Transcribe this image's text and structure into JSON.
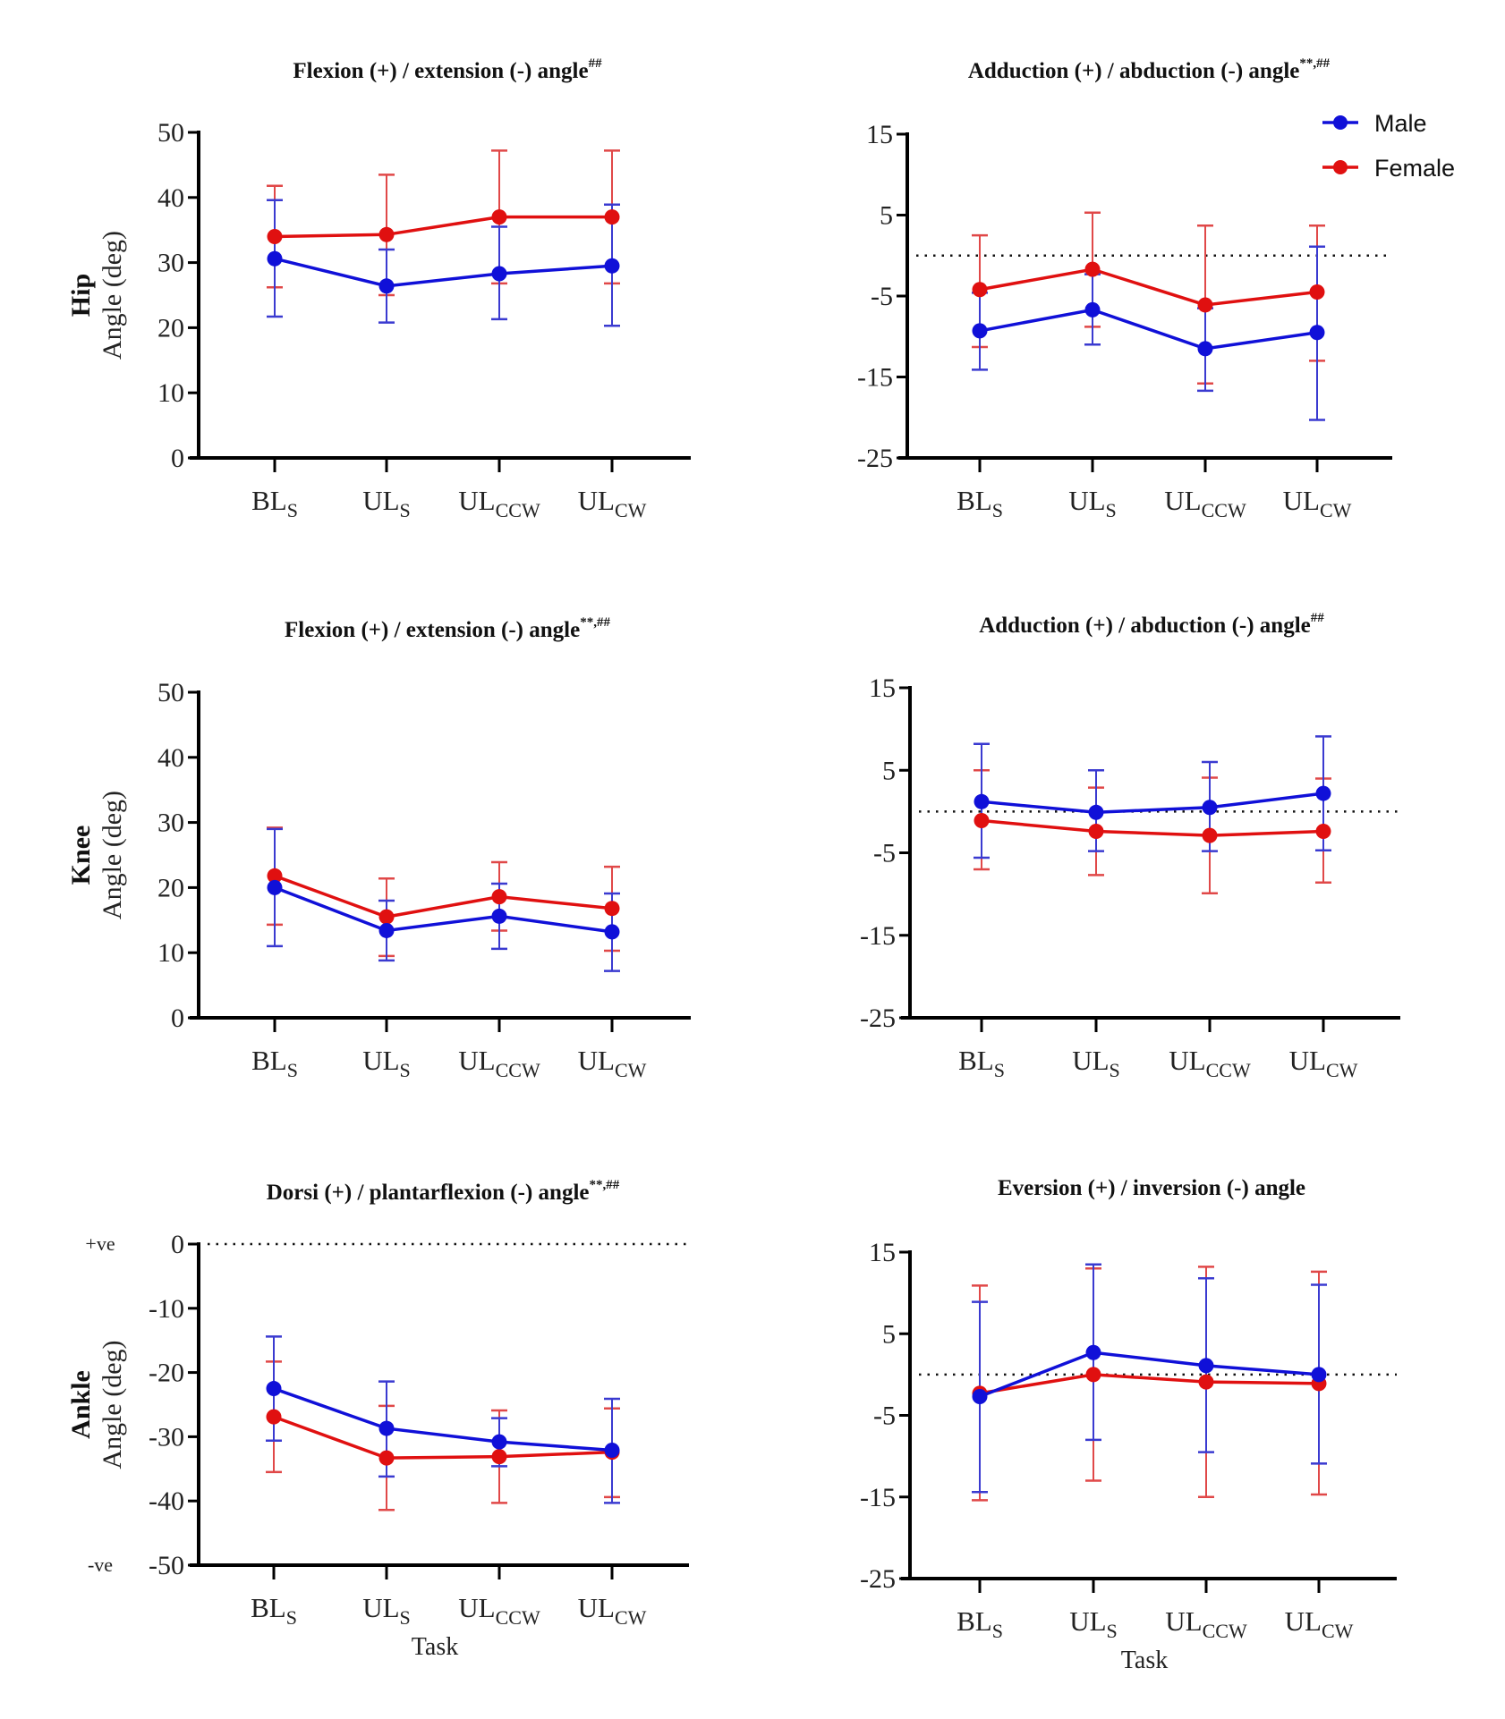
{
  "figure": {
    "legend": [
      {
        "name": "Male",
        "color": "#1010d8"
      },
      {
        "name": "Female",
        "color": "#e01010"
      }
    ],
    "categories": [
      {
        "main": "BL",
        "sub": "S"
      },
      {
        "main": "UL",
        "sub": "S"
      },
      {
        "main": "UL",
        "sub": "CCW"
      },
      {
        "main": "UL",
        "sub": "CW"
      }
    ],
    "xlabel": "Task",
    "ylabel": "Angle (deg)",
    "row_labels": [
      "Hip",
      "Knee",
      "Ankle"
    ],
    "sign_labels": {
      "positive": "+ve",
      "negative": "-ve"
    }
  },
  "chart_data": [
    {
      "id": "hip-flexion",
      "type": "line",
      "row": "Hip",
      "title": "Flexion (+) / extension (-) angle",
      "title_superscript": "##",
      "ylabel": "Angle (deg)",
      "ylim": [
        0,
        50
      ],
      "yticks": [
        0,
        10,
        20,
        30,
        40,
        50
      ],
      "zero_line": false,
      "legend": false,
      "categories": [
        "BLS",
        "ULS",
        "ULCCW",
        "ULCW"
      ],
      "series": [
        {
          "name": "Male",
          "values": [
            30.6,
            26.4,
            28.3,
            29.5
          ],
          "err_upper": [
            39.6,
            32.0,
            35.5,
            38.9
          ],
          "err_lower": [
            21.7,
            20.8,
            21.3,
            20.3
          ]
        },
        {
          "name": "Female",
          "values": [
            34.0,
            34.3,
            37.0,
            37.0
          ],
          "err_upper": [
            41.8,
            43.5,
            47.2,
            47.2
          ],
          "err_lower": [
            26.2,
            25.0,
            26.8,
            26.8
          ]
        }
      ]
    },
    {
      "id": "hip-adduction",
      "type": "line",
      "row": "Hip",
      "title": "Adduction (+) / abduction (-) angle",
      "title_superscript": "**,##",
      "ylabel": "",
      "ylim": [
        -25,
        15
      ],
      "yticks": [
        -25,
        -15,
        -5,
        5,
        15
      ],
      "zero_line": true,
      "legend": true,
      "legend_position": "top-right",
      "categories": [
        "BLS",
        "ULS",
        "ULCCW",
        "ULCW"
      ],
      "series": [
        {
          "name": "Male",
          "values": [
            -9.3,
            -6.7,
            -11.5,
            -9.5
          ],
          "err_upper": [
            -4.6,
            -2.3,
            -6.5,
            1.1
          ],
          "err_lower": [
            -14.1,
            -11.0,
            -16.7,
            -20.3
          ]
        },
        {
          "name": "Female",
          "values": [
            -4.2,
            -1.7,
            -6.1,
            -4.5
          ],
          "err_upper": [
            2.5,
            5.3,
            3.7,
            3.7
          ],
          "err_lower": [
            -11.3,
            -8.8,
            -15.8,
            -13.0
          ]
        }
      ]
    },
    {
      "id": "knee-flexion",
      "type": "line",
      "row": "Knee",
      "title": "Flexion (+) / extension (-) angle",
      "title_superscript": "**,##",
      "ylabel": "Angle (deg)",
      "ylim": [
        0,
        50
      ],
      "yticks": [
        0,
        10,
        20,
        30,
        40,
        50
      ],
      "zero_line": false,
      "legend": false,
      "categories": [
        "BLS",
        "ULS",
        "ULCCW",
        "ULCW"
      ],
      "series": [
        {
          "name": "Male",
          "values": [
            20.0,
            13.4,
            15.6,
            13.2
          ],
          "err_upper": [
            29.0,
            18.0,
            20.6,
            19.1
          ],
          "err_lower": [
            11.0,
            8.8,
            10.6,
            7.2
          ]
        },
        {
          "name": "Female",
          "values": [
            21.8,
            15.5,
            18.6,
            16.8
          ],
          "err_upper": [
            29.2,
            21.4,
            23.9,
            23.2
          ],
          "err_lower": [
            14.3,
            9.5,
            13.4,
            10.3
          ]
        }
      ]
    },
    {
      "id": "knee-adduction",
      "type": "line",
      "row": "Knee",
      "title": "Adduction (+) / abduction (-) angle",
      "title_superscript": "##",
      "ylabel": "",
      "ylim": [
        -25,
        15
      ],
      "yticks": [
        -25,
        -15,
        -5,
        5,
        15
      ],
      "zero_line": true,
      "legend": false,
      "categories": [
        "BLS",
        "ULS",
        "ULCCW",
        "ULCW"
      ],
      "series": [
        {
          "name": "Male",
          "values": [
            1.2,
            -0.1,
            0.5,
            2.2
          ],
          "err_upper": [
            8.2,
            5.0,
            6.0,
            9.1
          ],
          "err_lower": [
            -5.6,
            -4.8,
            -4.8,
            -4.7
          ]
        },
        {
          "name": "Female",
          "values": [
            -1.1,
            -2.4,
            -2.9,
            -2.4
          ],
          "err_upper": [
            5.0,
            2.9,
            4.1,
            4.0
          ],
          "err_lower": [
            -7.0,
            -7.7,
            -9.9,
            -8.6
          ]
        }
      ]
    },
    {
      "id": "ankle-dorsiflexion",
      "type": "line",
      "row": "Ankle",
      "title": "Dorsi (+) / plantarflexion (-) angle",
      "title_superscript": "**,##",
      "ylabel": "Angle (deg)",
      "xlabel": "Task",
      "ylim": [
        -50,
        0
      ],
      "yticks": [
        -50,
        -40,
        -30,
        -20,
        -10,
        0
      ],
      "zero_line": true,
      "legend": false,
      "sign_labels": true,
      "categories": [
        "BLS",
        "ULS",
        "ULCCW",
        "ULCW"
      ],
      "series": [
        {
          "name": "Male",
          "values": [
            -22.5,
            -28.7,
            -30.8,
            -32.1
          ],
          "err_upper": [
            -14.4,
            -21.4,
            -27.1,
            -24.1
          ],
          "err_lower": [
            -30.6,
            -36.2,
            -34.6,
            -40.3
          ]
        },
        {
          "name": "Female",
          "values": [
            -26.9,
            -33.3,
            -33.1,
            -32.4
          ],
          "err_upper": [
            -18.3,
            -25.2,
            -25.9,
            -25.6
          ],
          "err_lower": [
            -35.5,
            -41.4,
            -40.3,
            -39.4
          ]
        }
      ]
    },
    {
      "id": "ankle-eversion",
      "type": "line",
      "row": "Ankle",
      "title": "Eversion (+) / inversion (-) angle",
      "title_superscript": "",
      "ylabel": "",
      "xlabel": "Task",
      "ylim": [
        -25,
        15
      ],
      "yticks": [
        -25,
        -15,
        -5,
        5,
        15
      ],
      "zero_line": true,
      "legend": false,
      "categories": [
        "BLS",
        "ULS",
        "ULCCW",
        "ULCW"
      ],
      "series": [
        {
          "name": "Male",
          "values": [
            -2.7,
            2.7,
            1.1,
            0.0
          ],
          "err_upper": [
            8.9,
            13.5,
            11.8,
            11.0
          ],
          "err_lower": [
            -14.4,
            -8.0,
            -9.5,
            -10.9
          ]
        },
        {
          "name": "Female",
          "values": [
            -2.3,
            0.0,
            -0.9,
            -1.1
          ],
          "err_upper": [
            10.9,
            13.0,
            13.2,
            12.6
          ],
          "err_lower": [
            -15.4,
            -13.0,
            -15.0,
            -14.7
          ]
        }
      ]
    }
  ]
}
